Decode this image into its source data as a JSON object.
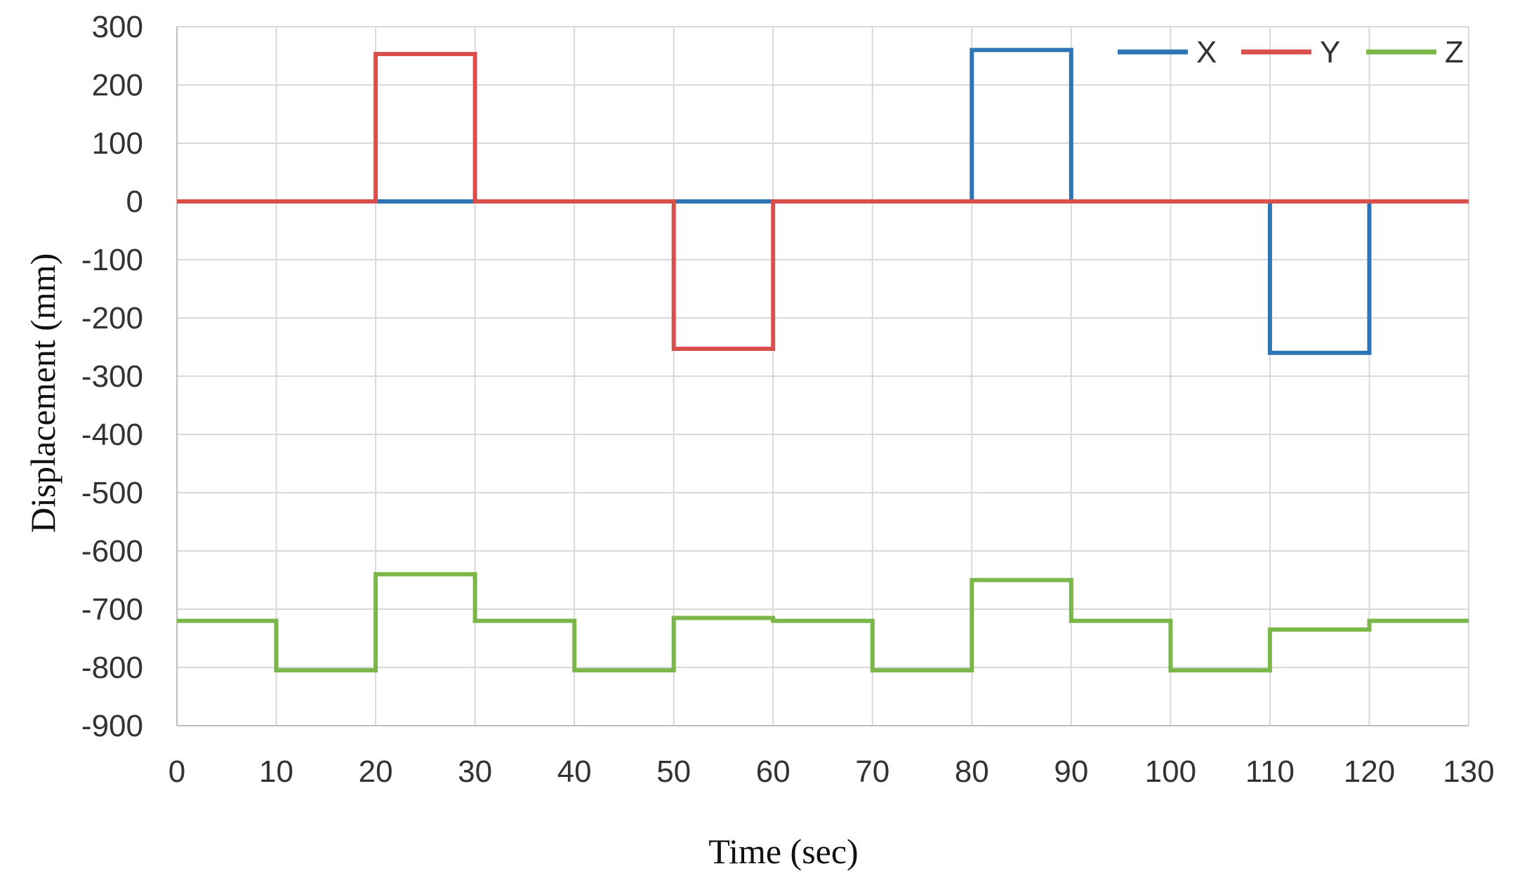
{
  "chart_data": {
    "type": "line",
    "title": "",
    "xlabel": "Time (sec)",
    "ylabel": "Displacement  (mm)",
    "xlim": [
      0,
      130
    ],
    "ylim": [
      -900,
      300
    ],
    "xticks": [
      0,
      10,
      20,
      30,
      40,
      50,
      60,
      70,
      80,
      90,
      100,
      110,
      120,
      130
    ],
    "yticks": [
      300,
      200,
      100,
      0,
      -100,
      -200,
      -300,
      -400,
      -500,
      -600,
      -700,
      -800,
      -900
    ],
    "grid": true,
    "legend": "top-right",
    "series": [
      {
        "name": "X",
        "color": "#2e75b6",
        "step": true,
        "x": [
          0,
          10,
          20,
          30,
          40,
          50,
          60,
          70,
          80,
          90,
          100,
          110,
          120,
          130
        ],
        "y": [
          0,
          0,
          0,
          0,
          0,
          0,
          0,
          0,
          260,
          0,
          0,
          -260,
          0,
          0
        ]
      },
      {
        "name": "Y",
        "color": "#d9504a",
        "step": true,
        "x": [
          0,
          10,
          20,
          30,
          40,
          50,
          60,
          70,
          80,
          90,
          100,
          110,
          120,
          130
        ],
        "y": [
          0,
          0,
          253,
          0,
          0,
          -253,
          0,
          0,
          0,
          0,
          0,
          0,
          0,
          0
        ]
      },
      {
        "name": "Z",
        "color": "#7ab648",
        "step": true,
        "x": [
          0,
          10,
          20,
          30,
          40,
          50,
          60,
          70,
          80,
          90,
          100,
          110,
          120,
          130
        ],
        "y": [
          -720,
          -805,
          -640,
          -720,
          -805,
          -715,
          -720,
          -805,
          -650,
          -720,
          -805,
          -735,
          -720,
          -720
        ]
      }
    ]
  }
}
